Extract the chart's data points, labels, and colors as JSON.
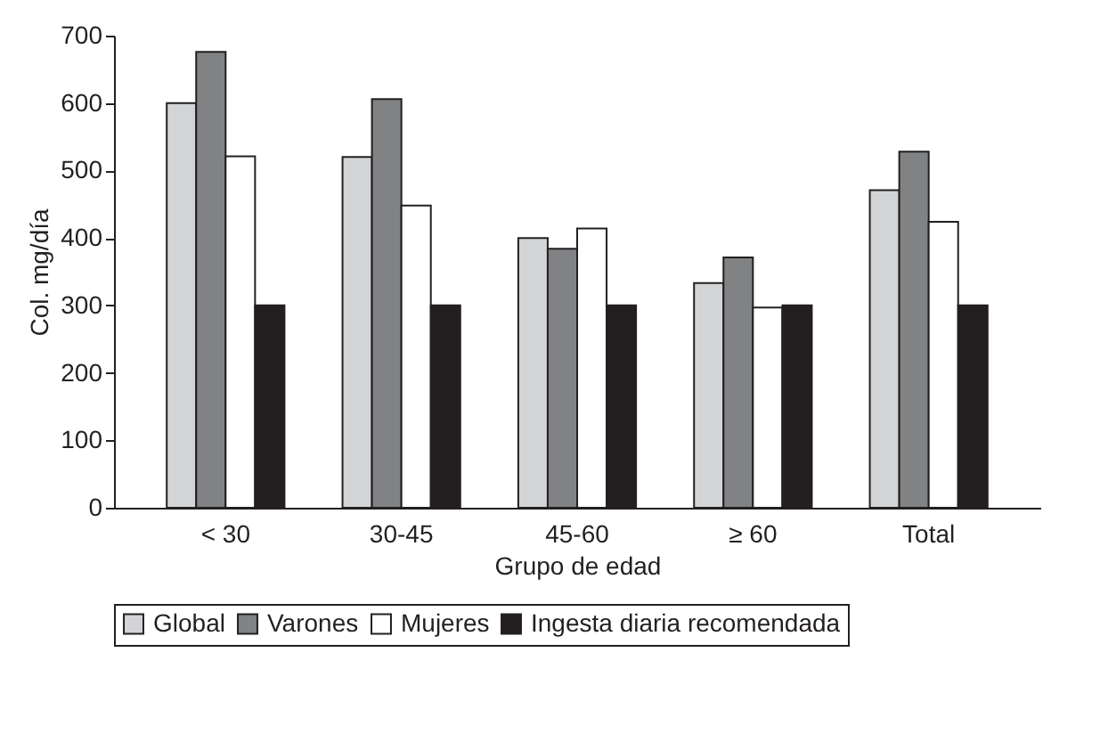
{
  "chart_data": {
    "type": "bar",
    "xlabel": "Grupo de edad",
    "ylabel": "Col. mg/día",
    "categories": [
      "< 30",
      "30-45",
      "45-60",
      "≥ 60",
      "Total"
    ],
    "series": [
      {
        "name": "Global",
        "color": "#d3d4d6",
        "values": [
          600,
          520,
          400,
          333,
          471
        ]
      },
      {
        "name": "Varones",
        "color": "#818284",
        "values": [
          676,
          606,
          384,
          371,
          528
        ]
      },
      {
        "name": "Mujeres",
        "color": "#ffffff",
        "values": [
          521,
          448,
          414,
          297,
          424
        ]
      },
      {
        "name": "Ingesta diaria recomendada",
        "color": "#231f20",
        "values": [
          300,
          300,
          300,
          300,
          300
        ]
      }
    ],
    "ylim": [
      0,
      700
    ],
    "yticks": [
      0,
      100,
      200,
      300,
      400,
      500,
      600,
      700
    ],
    "grid": false,
    "legend": "bottom"
  }
}
